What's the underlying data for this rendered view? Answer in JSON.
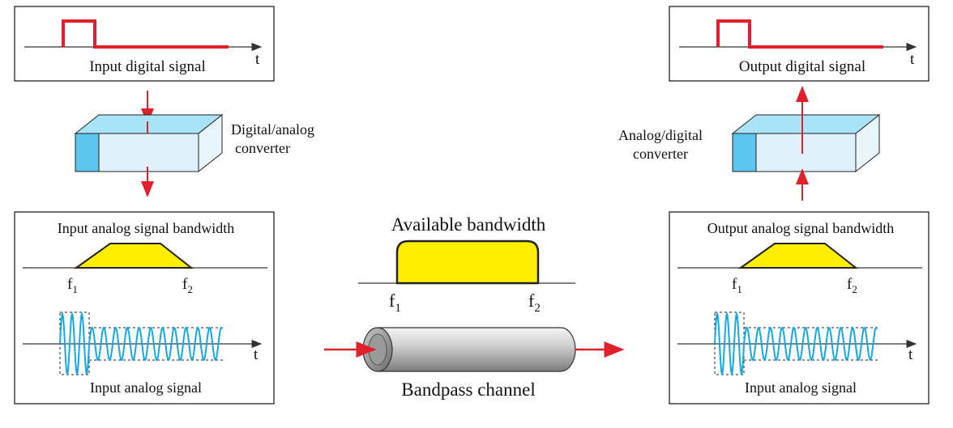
{
  "left_column": {
    "input_digital_label": "Input digital signal",
    "time_axis_label": "t",
    "converter_label_line1": "Digital/analog",
    "converter_label_line2": "converter",
    "bandwidth_title": "Input analog signal bandwidth",
    "f1": "f",
    "f1_sub": "1",
    "f2": "f",
    "f2_sub": "2",
    "analog_signal_label": "Input analog signal"
  },
  "center": {
    "title": "Available bandwidth",
    "f1": "f",
    "f1_sub": "1",
    "f2": "f",
    "f2_sub": "2",
    "channel_label": "Bandpass channel"
  },
  "right_column": {
    "output_digital_label": "Output digital signal",
    "time_axis_label": "t",
    "converter_label_line1": "Analog/digital",
    "converter_label_line2": "converter",
    "bandwidth_title": "Output analog signal bandwidth",
    "f1": "f",
    "f1_sub": "1",
    "f2": "f",
    "f2_sub": "2",
    "analog_signal_label": "Input analog signal"
  },
  "colors": {
    "signal_red": "#e0202a",
    "band_yellow": "#ffee00",
    "wave_blue": "#13a8e6",
    "converter_blue": "#7fd3f2"
  }
}
